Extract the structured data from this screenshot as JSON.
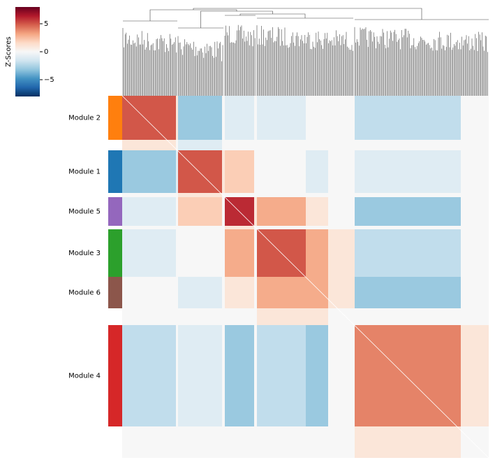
{
  "chart_data": {
    "type": "clustermap",
    "categories": [
      "Module 2",
      null,
      "Module 1",
      null,
      "Module 5",
      null,
      "Module 3",
      "Module 6",
      null,
      "Module 4",
      null
    ],
    "colors": [
      "#ff7f0e",
      null,
      "#1f77b4",
      null,
      "#9467bd",
      null,
      "#2ca02c",
      "#8c564b",
      null,
      "#d62728",
      null
    ],
    "matrix": [
      [
        5,
        1,
        -3,
        0,
        -1,
        0,
        -1,
        0,
        0,
        -2,
        0
      ],
      [
        1,
        0,
        -1,
        0,
        0,
        0,
        0,
        0,
        0,
        0,
        0
      ],
      [
        -3,
        -1,
        5,
        1,
        2,
        0,
        0,
        -1,
        0,
        -1,
        0
      ],
      [
        0,
        0,
        1,
        0,
        0,
        0,
        0,
        0,
        0,
        0,
        0
      ],
      [
        -1,
        0,
        2,
        0,
        6,
        1,
        3,
        1,
        0,
        -3,
        0
      ],
      [
        0,
        0,
        0,
        0,
        1,
        0,
        0,
        0,
        0,
        0,
        0
      ],
      [
        -1,
        0,
        0,
        0,
        3,
        0,
        5,
        3,
        1,
        -2,
        0
      ],
      [
        0,
        0,
        -1,
        0,
        1,
        0,
        3,
        3,
        1,
        -3,
        0
      ],
      [
        0,
        0,
        0,
        0,
        0,
        0,
        1,
        1,
        0,
        0,
        0
      ],
      [
        -2,
        0,
        -1,
        0,
        -3,
        0,
        -2,
        -3,
        0,
        4,
        1
      ],
      [
        0,
        0,
        0,
        0,
        0,
        0,
        0,
        0,
        0,
        1,
        0
      ]
    ],
    "colorbar_label": "Z-Scores",
    "ylim": [
      -8,
      8
    ],
    "yticks": [
      {
        "value": 5,
        "label": "5"
      },
      {
        "value": 0,
        "label": "0"
      },
      {
        "value": -5,
        "label": "−5"
      }
    ]
  }
}
